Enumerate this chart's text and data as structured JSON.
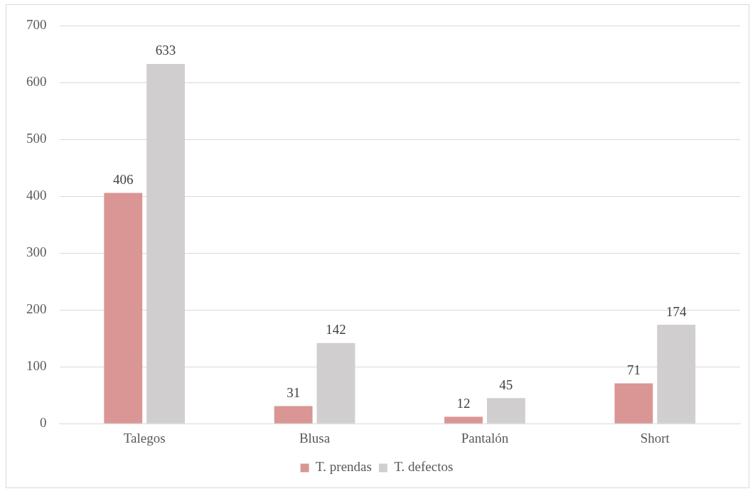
{
  "chart_data": {
    "type": "bar",
    "categories": [
      "Talegos",
      "Blusa",
      "Pantalón",
      "Short"
    ],
    "series": [
      {
        "name": "T. prendas",
        "color": "#d99694",
        "values": [
          406,
          31,
          12,
          71
        ]
      },
      {
        "name": "T. defectos",
        "color": "#d0cece",
        "values": [
          633,
          142,
          45,
          174
        ]
      }
    ],
    "ylim": [
      0,
      700
    ],
    "yticks": [
      0,
      100,
      200,
      300,
      400,
      500,
      600,
      700
    ],
    "grid": "y",
    "legend": "bottom",
    "data_labels": true
  }
}
